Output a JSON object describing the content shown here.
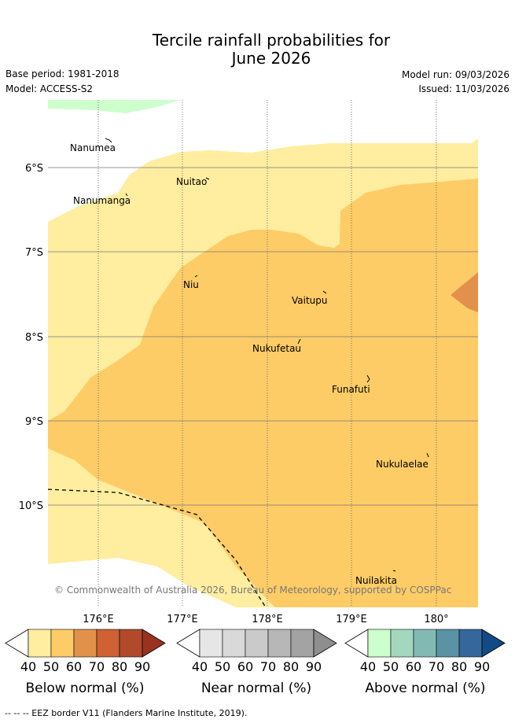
{
  "header": {
    "title_line1": "Tercile rainfall probabilities for",
    "title_line2": "June 2026",
    "base_period": "Base period: 1981-2018",
    "model": "Model: ACCESS-S2",
    "model_run": "Model run: 09/03/2026",
    "issued": "Issued: 11/03/2026"
  },
  "map": {
    "lat_labels": [
      "6°S",
      "7°S",
      "8°S",
      "9°S",
      "10°S"
    ],
    "lon_labels": [
      "176°E",
      "177°E",
      "178°E",
      "179°E",
      "180°"
    ],
    "places": [
      "Nanumea",
      "Nuitao",
      "Nanumanga",
      "Niu",
      "Vaitupu",
      "Nukufetau",
      "Funafuti",
      "Nukulaelae",
      "Nuilakita"
    ],
    "copyright": "© Commonwealth of Australia 2026, Bureau of Meteorology, supported by COSPPac",
    "colors": {
      "below_40_50": "#ffeda0",
      "below_50_60": "#fecc66",
      "below_60_70": "#e2914a",
      "above_40_50": "#ccffcc"
    }
  },
  "legend": {
    "ticks": [
      "40",
      "50",
      "60",
      "70",
      "80",
      "90"
    ],
    "below": {
      "label": "Below normal (%)",
      "colors": [
        "#ffeda0",
        "#fecc66",
        "#e2914a",
        "#cf6234",
        "#b04a2a",
        "#9a3220"
      ]
    },
    "near": {
      "label": "Near normal (%)",
      "colors": [
        "#e6e6e6",
        "#d9d9d9",
        "#cacaca",
        "#b7b7b7",
        "#a3a3a3",
        "#8e8e8e"
      ]
    },
    "above": {
      "label": "Above normal (%)",
      "colors": [
        "#ccffcc",
        "#a4d8be",
        "#82b9b3",
        "#5a93a3",
        "#35679c",
        "#134a85"
      ]
    }
  },
  "footer": {
    "eez_note": "--  --  -- EEZ border V11 (Flanders Marine Institute, 2019)."
  }
}
